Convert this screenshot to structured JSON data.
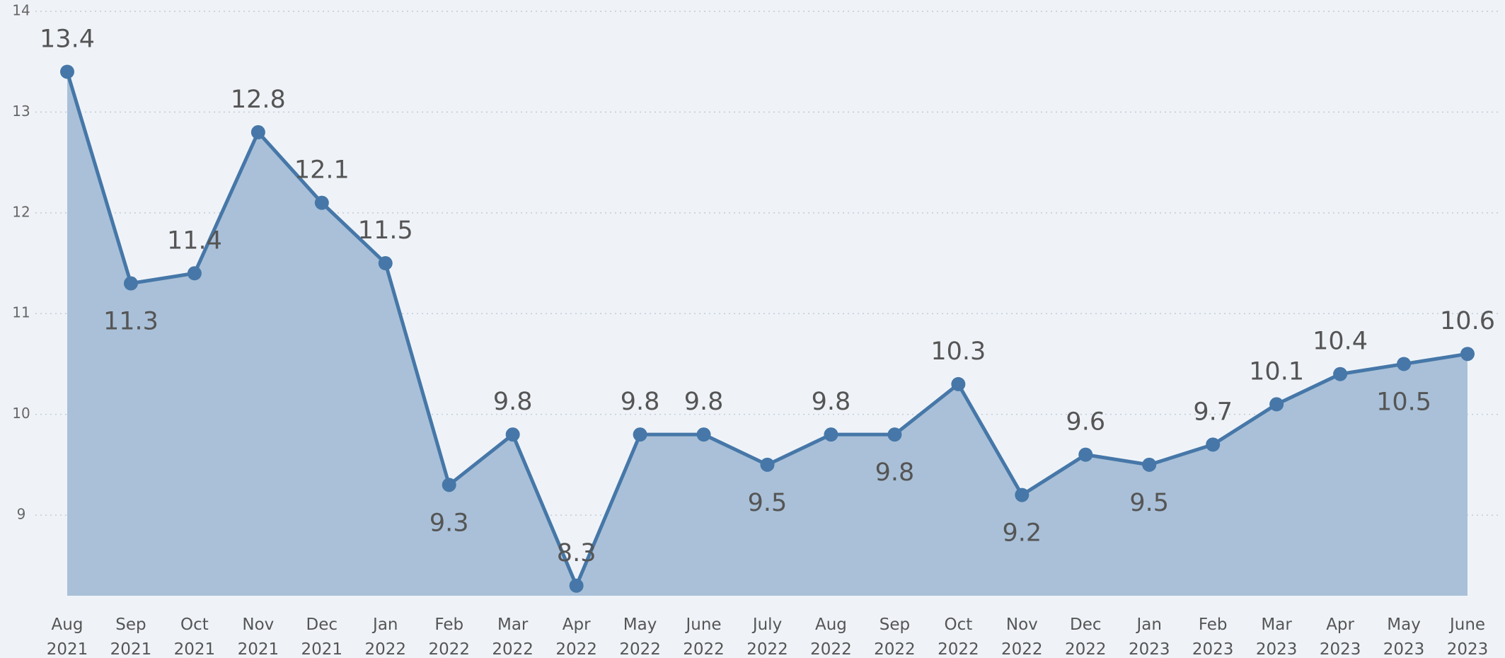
{
  "chart_data": {
    "type": "line",
    "categories": [
      "Aug 2021",
      "Sep 2021",
      "Oct 2021",
      "Nov 2021",
      "Dec 2021",
      "Jan 2022",
      "Feb 2022",
      "Mar 2022",
      "Apr 2022",
      "May 2022",
      "June 2022",
      "July 2022",
      "Aug 2022",
      "Sep 2022",
      "Oct 2022",
      "Nov 2022",
      "Dec 2022",
      "Jan 2023",
      "Feb 2023",
      "Mar 2023",
      "Apr 2023",
      "May 2023",
      "June 2023"
    ],
    "values": [
      13.4,
      11.3,
      11.4,
      12.8,
      12.1,
      11.5,
      9.3,
      9.8,
      8.3,
      9.8,
      9.8,
      9.5,
      9.8,
      9.8,
      10.3,
      9.2,
      9.6,
      9.5,
      9.7,
      10.1,
      10.4,
      10.5,
      10.6
    ],
    "color": "#4677a8",
    "fill": "#a9c0d8",
    "ylim": [
      8.2,
      14
    ],
    "yticks": [
      9,
      10,
      11,
      12,
      13,
      14
    ],
    "grid": true
  }
}
